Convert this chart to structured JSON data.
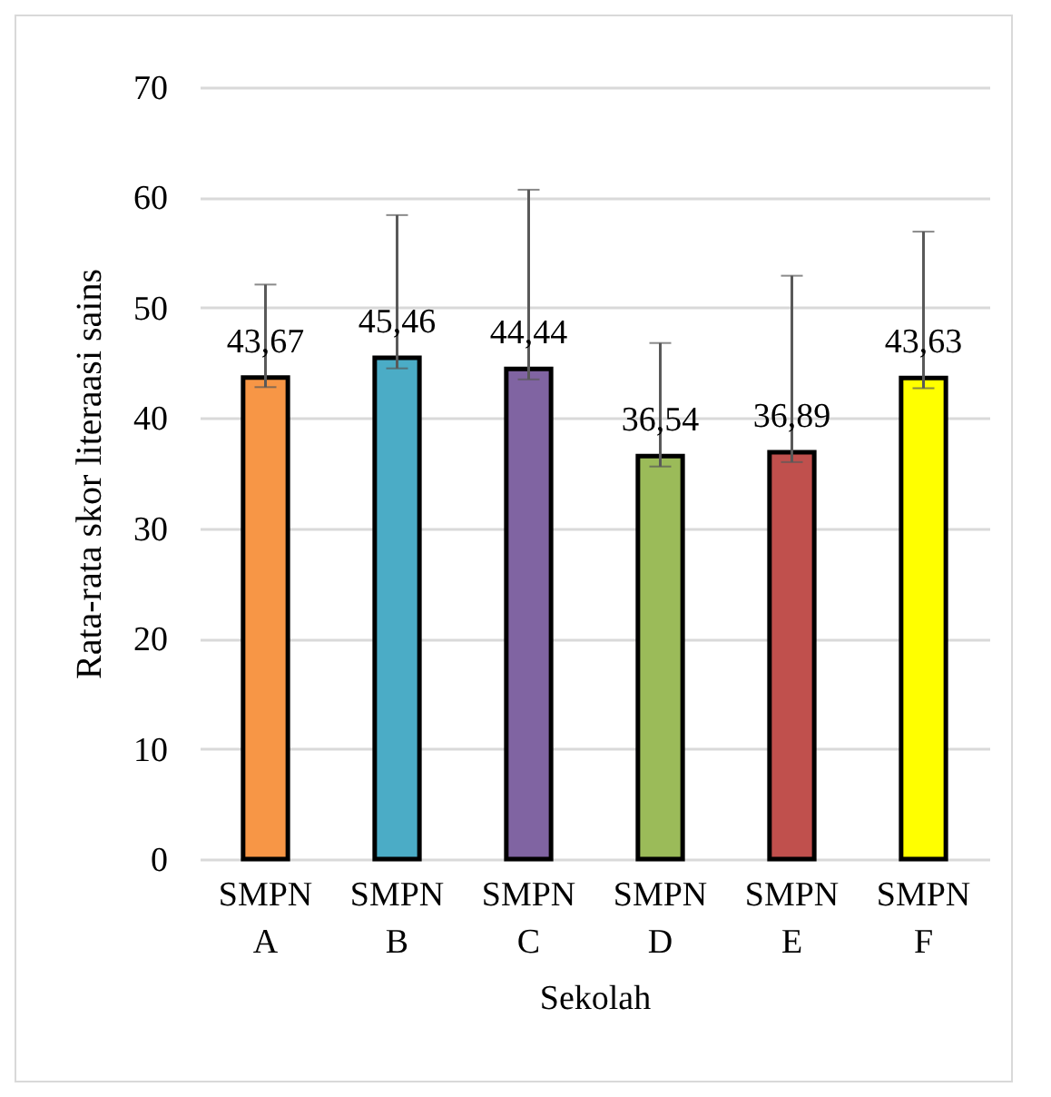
{
  "chart_data": {
    "type": "bar",
    "xlabel": "Sekolah",
    "ylabel": "Rata-rata skor literaasi sains",
    "categories": [
      "SMPN A",
      "SMPN B",
      "SMPN C",
      "SMPN D",
      "SMPN E",
      "SMPN F"
    ],
    "values": [
      43.67,
      45.46,
      44.44,
      36.54,
      36.89,
      43.63
    ],
    "colors": [
      "#f79646",
      "#4bacc6",
      "#8064a2",
      "#9bbb59",
      "#c0504d",
      "#ffff00"
    ],
    "errors": [
      [
        42.8,
        52.1
      ],
      [
        44.5,
        58.4
      ],
      [
        43.5,
        60.7
      ],
      [
        35.6,
        46.8
      ],
      [
        36.0,
        52.9
      ],
      [
        42.7,
        56.9
      ]
    ],
    "value_labels": [
      "43,67",
      "45,46",
      "44,44",
      "36,54",
      "36,89",
      "43,63"
    ],
    "ylim": [
      0,
      70
    ],
    "yticks": [
      0,
      10,
      20,
      30,
      40,
      50,
      60,
      70
    ],
    "grid": "y"
  }
}
